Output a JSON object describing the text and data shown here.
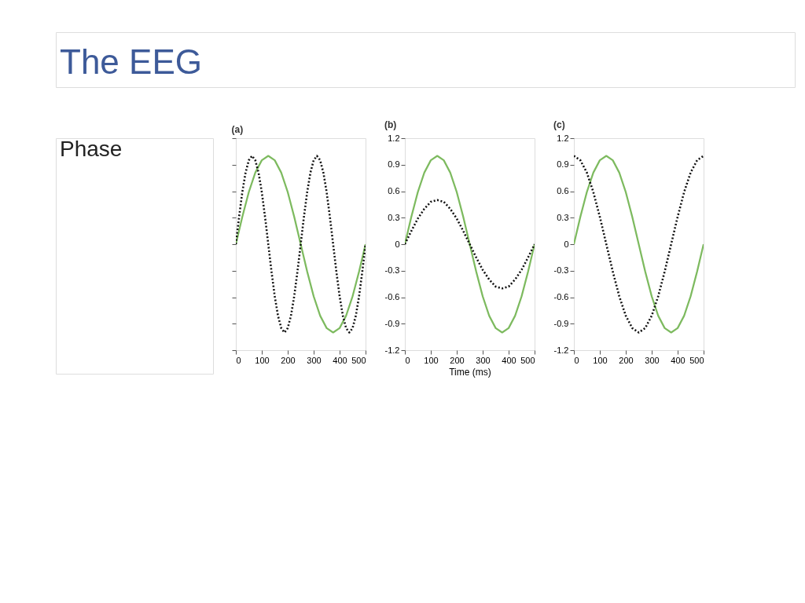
{
  "chart_data": [
    {
      "type": "line",
      "title": "(a)",
      "annotations": [
        "The EEG",
        "Phase"
      ],
      "legend": false,
      "grid": false,
      "tick_labels": "x",
      "xlim": [
        0,
        500
      ],
      "xticks": [
        0,
        100,
        200,
        300,
        400,
        500
      ],
      "ylim": [
        -1.2,
        1.2
      ],
      "yticks": [
        {
          "value": -1.2,
          "label": null
        },
        {
          "value": -0.9,
          "label": null
        },
        {
          "value": -0.6,
          "label": null
        },
        {
          "value": -0.3,
          "label": null
        },
        {
          "value": 0,
          "label": null
        },
        {
          "value": 0.3,
          "label": null
        },
        {
          "value": 0.6,
          "label": null
        },
        {
          "value": 0.9,
          "label": null
        },
        {
          "value": 1.2,
          "label": null
        }
      ],
      "x": [
        0,
        25,
        50,
        75,
        100,
        125,
        150,
        175,
        200,
        225,
        250,
        275,
        300,
        325,
        350,
        375,
        400,
        425,
        450,
        475,
        500
      ],
      "series": [
        {
          "color": "#7dba5f",
          "line_style": "solid",
          "values": [
            0,
            0.31,
            0.59,
            0.81,
            0.95,
            1,
            0.95,
            0.81,
            0.59,
            0.31,
            0,
            -0.31,
            -0.59,
            -0.81,
            -0.95,
            -1,
            -0.95,
            -0.81,
            -0.59,
            -0.31,
            0
          ]
        },
        {
          "color": "#111111",
          "line_style": "dotted",
          "x": [
            0,
            12.5,
            25,
            37.5,
            50,
            62.5,
            75,
            87.5,
            100,
            112.5,
            125,
            137.5,
            150,
            162.5,
            175,
            187.5,
            200,
            212.5,
            225,
            237.5,
            250,
            262.5,
            275,
            287.5,
            300,
            312.5,
            325,
            337.5,
            350,
            362.5,
            375,
            387.5,
            400,
            412.5,
            425,
            437.5,
            450,
            462.5,
            475,
            487.5,
            500
          ],
          "values": [
            0,
            0.31,
            0.59,
            0.81,
            0.95,
            1,
            0.95,
            0.81,
            0.59,
            0.31,
            0,
            -0.31,
            -0.59,
            -0.81,
            -0.95,
            -1,
            -0.95,
            -0.81,
            -0.59,
            -0.31,
            0,
            0.31,
            0.59,
            0.81,
            0.95,
            1,
            0.95,
            0.81,
            0.59,
            0.31,
            0,
            -0.31,
            -0.59,
            -0.81,
            -0.95,
            -1,
            -0.95,
            -0.81,
            -0.59,
            -0.31,
            0
          ]
        }
      ]
    },
    {
      "type": "line",
      "title": "(b)",
      "xlabel": "Time (ms)",
      "legend": false,
      "grid": false,
      "xlim": [
        0,
        500
      ],
      "xticks": [
        0,
        100,
        200,
        300,
        400,
        500
      ],
      "ylim": [
        -1.2,
        1.2
      ],
      "yticks": [
        -1.2,
        -0.9,
        -0.6,
        -0.3,
        0,
        0.3,
        0.6,
        0.9,
        1.2
      ],
      "x": [
        0,
        25,
        50,
        75,
        100,
        125,
        150,
        175,
        200,
        225,
        250,
        275,
        300,
        325,
        350,
        375,
        400,
        425,
        450,
        475,
        500
      ],
      "series": [
        {
          "color": "#7dba5f",
          "line_style": "solid",
          "values": [
            0,
            0.31,
            0.59,
            0.81,
            0.95,
            1,
            0.95,
            0.81,
            0.59,
            0.31,
            0,
            -0.31,
            -0.59,
            -0.81,
            -0.95,
            -1,
            -0.95,
            -0.81,
            -0.59,
            -0.31,
            0
          ]
        },
        {
          "color": "#111111",
          "line_style": "dotted",
          "values": [
            0,
            0.15,
            0.29,
            0.4,
            0.48,
            0.5,
            0.48,
            0.4,
            0.29,
            0.15,
            0,
            -0.15,
            -0.29,
            -0.4,
            -0.48,
            -0.5,
            -0.48,
            -0.4,
            -0.29,
            -0.15,
            0
          ]
        }
      ]
    },
    {
      "type": "line",
      "title": "(c)",
      "legend": false,
      "grid": false,
      "xlim": [
        0,
        500
      ],
      "xticks": [
        0,
        100,
        200,
        300,
        400,
        500
      ],
      "ylim": [
        -1.2,
        1.2
      ],
      "yticks": [
        -1.2,
        -0.9,
        -0.6,
        -0.3,
        0,
        0.3,
        0.6,
        0.9,
        1.2
      ],
      "x": [
        0,
        25,
        50,
        75,
        100,
        125,
        150,
        175,
        200,
        225,
        250,
        275,
        300,
        325,
        350,
        375,
        400,
        425,
        450,
        475,
        500
      ],
      "series": [
        {
          "color": "#7dba5f",
          "line_style": "solid",
          "values": [
            0,
            0.31,
            0.59,
            0.81,
            0.95,
            1,
            0.95,
            0.81,
            0.59,
            0.31,
            0,
            -0.31,
            -0.59,
            -0.81,
            -0.95,
            -1,
            -0.95,
            -0.81,
            -0.59,
            -0.31,
            0
          ]
        },
        {
          "color": "#111111",
          "line_style": "dotted",
          "values": [
            1,
            0.95,
            0.81,
            0.59,
            0.31,
            0,
            -0.31,
            -0.59,
            -0.81,
            -0.95,
            -1,
            -0.95,
            -0.81,
            -0.59,
            -0.31,
            0,
            0.31,
            0.59,
            0.81,
            0.95,
            1
          ]
        }
      ]
    }
  ]
}
